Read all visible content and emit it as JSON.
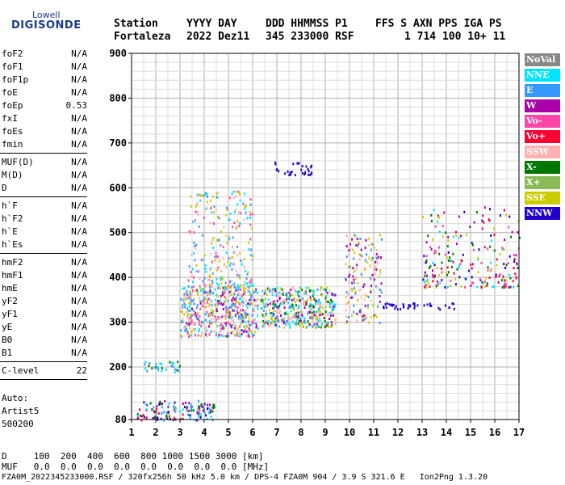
{
  "logo": {
    "line1": "Lowell",
    "line2": "DIGISONDE"
  },
  "header": {
    "labels": [
      "Station",
      "YYYY DAY",
      "DDD HHMMSS P1",
      "FFS S AXN PPS IGA PS"
    ],
    "values": [
      "Fortaleza",
      "2022 Dez11",
      "345 233000 RSF",
      "1 714 100 10+ 11"
    ]
  },
  "params_groups": [
    [
      {
        "name": "foF2",
        "value": "N/A"
      },
      {
        "name": "foF1",
        "value": "N/A"
      },
      {
        "name": "foF1p",
        "value": "N/A"
      },
      {
        "name": "foE",
        "value": "N/A"
      },
      {
        "name": "foEp",
        "value": "0.53"
      },
      {
        "name": "fxI",
        "value": "N/A"
      },
      {
        "name": "foEs",
        "value": "N/A"
      },
      {
        "name": "fmin",
        "value": "N/A"
      }
    ],
    [
      {
        "name": "MUF(D)",
        "value": "N/A"
      },
      {
        "name": "M(D)",
        "value": "N/A"
      },
      {
        "name": "D",
        "value": "N/A"
      }
    ],
    [
      {
        "name": "h`F",
        "value": "N/A"
      },
      {
        "name": "h`F2",
        "value": "N/A"
      },
      {
        "name": "h`E",
        "value": "N/A"
      },
      {
        "name": "h`Es",
        "value": "N/A"
      }
    ],
    [
      {
        "name": "hmF2",
        "value": "N/A"
      },
      {
        "name": "hmF1",
        "value": "N/A"
      },
      {
        "name": "hmE",
        "value": "N/A"
      },
      {
        "name": "yF2",
        "value": "N/A"
      },
      {
        "name": "yF1",
        "value": "N/A"
      },
      {
        "name": "yE",
        "value": "N/A"
      },
      {
        "name": "B0",
        "value": "N/A"
      },
      {
        "name": "B1",
        "value": "N/A"
      }
    ],
    [
      {
        "name": "C-level",
        "value": "22"
      }
    ]
  ],
  "side_footer": [
    "Auto:",
    "Artist5",
    "500200"
  ],
  "legend": [
    {
      "label": "NoVal",
      "bg": "#888888",
      "fg": "#ffffff"
    },
    {
      "label": "NNE",
      "bg": "#00e5ff",
      "fg": "#ffffff"
    },
    {
      "label": "E",
      "bg": "#3399ff",
      "fg": "#ffffff"
    },
    {
      "label": "W",
      "bg": "#aa00aa",
      "fg": "#ffffff"
    },
    {
      "label": "Vo-",
      "bg": "#ff44aa",
      "fg": "#ffffff"
    },
    {
      "label": "Vo+",
      "bg": "#ff0033",
      "fg": "#ffffff"
    },
    {
      "label": "SSW",
      "bg": "#ffb0b0",
      "fg": "#ffffff"
    },
    {
      "label": "X-",
      "bg": "#007700",
      "fg": "#ffffff"
    },
    {
      "label": "X+",
      "bg": "#88bb55",
      "fg": "#ffffff"
    },
    {
      "label": "SSE",
      "bg": "#cccc00",
      "fg": "#ffffff"
    },
    {
      "label": "NNW",
      "bg": "#2200cc",
      "fg": "#ffffff"
    }
  ],
  "bottom": {
    "line1": "D     100  200  400  600  800 1000 1500 3000 [km]",
    "line2": "MUF   0.0  0.0  0.0  0.0  0.0  0.0  0.0  0.0 [MHz]",
    "line3": "FZA0M_2022345233000.RSF / 320fx256h 50 kHz 5.0 km / DPS-4 FZA0M 904 / 3.9 S 321.6 E   Ion2Png 1.3.20"
  },
  "chart_data": {
    "type": "scatter",
    "x_ticks": [
      1,
      2,
      3,
      4,
      5,
      6,
      7,
      8,
      9,
      10,
      11,
      12,
      13,
      14,
      15,
      16,
      17
    ],
    "y_ticks": [
      80,
      200,
      300,
      400,
      500,
      600,
      700,
      800,
      900
    ],
    "xlim": [
      1,
      17
    ],
    "ylim": [
      80,
      900
    ],
    "grid": true,
    "legend_position": "right",
    "clusters": [
      {
        "name": "E-region echoes",
        "x": [
          1.2,
          4.4
        ],
        "y": [
          80,
          125
        ],
        "colors": [
          "#2200cc",
          "#aa00aa",
          "#3399ff",
          "#00e5ff",
          "#007700",
          "#ff0033"
        ]
      },
      {
        "name": "low traces",
        "x": [
          1.5,
          3.0
        ],
        "y": [
          190,
          215
        ],
        "colors": [
          "#3399ff",
          "#00e5ff",
          "#007700"
        ]
      },
      {
        "name": "F-region main",
        "x": [
          3.0,
          6.2
        ],
        "y": [
          270,
          380
        ],
        "colors": [
          "#ffb0b0",
          "#cccc00",
          "#3399ff",
          "#aa00aa",
          "#00e5ff",
          "#ff44aa"
        ]
      },
      {
        "name": "F-region spread",
        "x": [
          3.3,
          6.0
        ],
        "y": [
          380,
          600
        ],
        "colors": [
          "#cccc00",
          "#3399ff",
          "#00e5ff",
          "#ff44aa",
          "#ffb0b0"
        ]
      },
      {
        "name": "F-region mid",
        "x": [
          6.3,
          9.4
        ],
        "y": [
          290,
          380
        ],
        "colors": [
          "#ffb0b0",
          "#cccc00",
          "#3399ff",
          "#007700",
          "#aa00aa",
          "#00e5ff"
        ]
      },
      {
        "name": "F-region late",
        "x": [
          9.8,
          11.3
        ],
        "y": [
          300,
          500
        ],
        "colors": [
          "#ffb0b0",
          "#cccc00",
          "#aa00aa",
          "#3399ff"
        ]
      },
      {
        "name": "upper NNW traces",
        "x": [
          6.9,
          8.5
        ],
        "y": [
          630,
          660
        ],
        "colors": [
          "#2200cc"
        ]
      },
      {
        "name": "NNW trace",
        "x": [
          11.3,
          14.3
        ],
        "y": [
          330,
          345
        ],
        "colors": [
          "#2200cc"
        ]
      },
      {
        "name": "high-freq spread",
        "x": [
          13,
          17
        ],
        "y": [
          380,
          560
        ],
        "colors": [
          "#aa00aa",
          "#ff44aa",
          "#2200cc",
          "#00e5ff",
          "#cccc00",
          "#ff0033",
          "#007700"
        ]
      }
    ]
  }
}
